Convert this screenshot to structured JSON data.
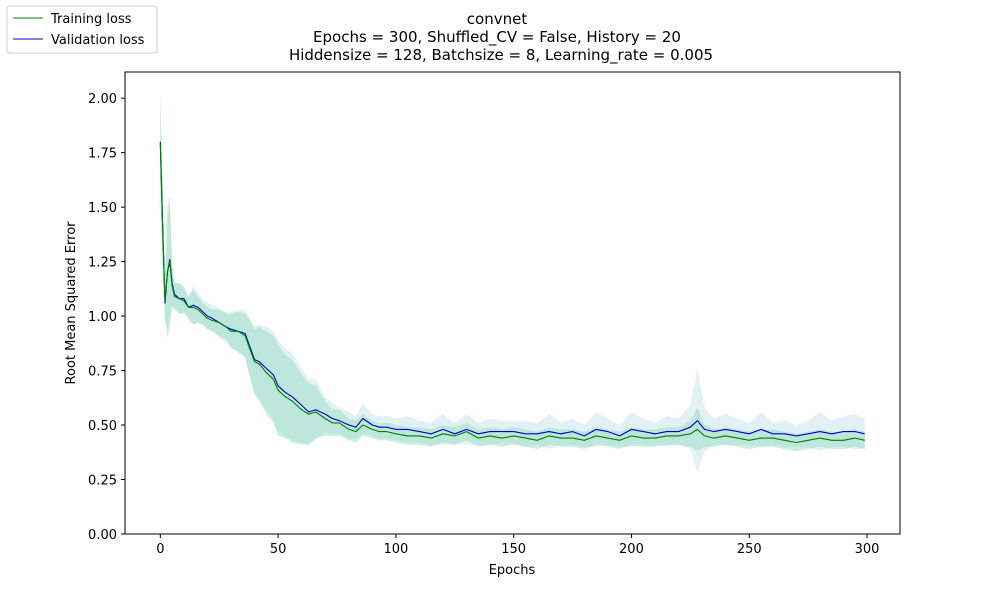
{
  "chart_data": {
    "type": "line",
    "title": "convnet",
    "subtitle_lines": [
      "Epochs = 300, Shuffled_CV = False, History = 20",
      "Hiddensize = 128, Batchsize = 8, Learning_rate = 0.005"
    ],
    "xlabel": "Epochs",
    "ylabel": "Root Mean Squared Error",
    "xlim": [
      -15,
      314
    ],
    "ylim": [
      0,
      2.12
    ],
    "xticks": [
      0,
      50,
      100,
      150,
      200,
      250,
      300
    ],
    "yticks": [
      0.0,
      0.25,
      0.5,
      0.75,
      1.0,
      1.25,
      1.5,
      1.75,
      2.0
    ],
    "grid": false,
    "legend_position": "top-left",
    "x": [
      0,
      1,
      2,
      3,
      4,
      5,
      6,
      8,
      10,
      12,
      14,
      16,
      18,
      20,
      22,
      25,
      28,
      30,
      33,
      36,
      38,
      40,
      42,
      45,
      48,
      50,
      53,
      56,
      60,
      63,
      66,
      70,
      73,
      76,
      80,
      83,
      86,
      90,
      93,
      96,
      100,
      105,
      110,
      115,
      120,
      125,
      130,
      135,
      140,
      145,
      150,
      155,
      160,
      165,
      170,
      175,
      180,
      185,
      190,
      195,
      200,
      205,
      210,
      215,
      220,
      225,
      228,
      231,
      235,
      240,
      245,
      250,
      255,
      260,
      265,
      270,
      275,
      280,
      285,
      290,
      295,
      299
    ],
    "series": [
      {
        "name": "Training loss",
        "color": "#008000",
        "band_color": "#8fdcb8",
        "values": [
          1.79,
          1.4,
          1.07,
          1.2,
          1.25,
          1.14,
          1.09,
          1.08,
          1.07,
          1.04,
          1.04,
          1.03,
          1.01,
          0.99,
          0.98,
          0.97,
          0.95,
          0.93,
          0.93,
          0.91,
          0.85,
          0.79,
          0.78,
          0.74,
          0.71,
          0.66,
          0.63,
          0.61,
          0.57,
          0.55,
          0.56,
          0.53,
          0.51,
          0.51,
          0.48,
          0.47,
          0.5,
          0.48,
          0.47,
          0.47,
          0.46,
          0.45,
          0.45,
          0.44,
          0.46,
          0.45,
          0.47,
          0.44,
          0.45,
          0.44,
          0.45,
          0.44,
          0.43,
          0.45,
          0.44,
          0.44,
          0.43,
          0.45,
          0.44,
          0.43,
          0.45,
          0.44,
          0.44,
          0.45,
          0.45,
          0.46,
          0.48,
          0.45,
          0.44,
          0.45,
          0.44,
          0.43,
          0.44,
          0.44,
          0.43,
          0.42,
          0.43,
          0.44,
          0.43,
          0.43,
          0.44,
          0.43
        ],
        "band_halfwidth": [
          0.22,
          0.2,
          0.08,
          0.3,
          0.3,
          0.1,
          0.06,
          0.07,
          0.06,
          0.05,
          0.08,
          0.06,
          0.05,
          0.05,
          0.05,
          0.06,
          0.06,
          0.08,
          0.09,
          0.1,
          0.13,
          0.15,
          0.17,
          0.19,
          0.2,
          0.21,
          0.19,
          0.19,
          0.16,
          0.14,
          0.12,
          0.08,
          0.06,
          0.06,
          0.05,
          0.05,
          0.05,
          0.04,
          0.04,
          0.04,
          0.04,
          0.04,
          0.04,
          0.04,
          0.04,
          0.04,
          0.04,
          0.04,
          0.04,
          0.04,
          0.04,
          0.04,
          0.04,
          0.04,
          0.04,
          0.04,
          0.04,
          0.04,
          0.04,
          0.04,
          0.04,
          0.04,
          0.04,
          0.04,
          0.04,
          0.06,
          0.1,
          0.05,
          0.04,
          0.04,
          0.04,
          0.04,
          0.04,
          0.04,
          0.04,
          0.04,
          0.04,
          0.04,
          0.04,
          0.04,
          0.04,
          0.04
        ]
      },
      {
        "name": "Validation loss",
        "color": "#0000cc",
        "band_color": "#add8e6",
        "values": [
          1.8,
          1.4,
          1.06,
          1.2,
          1.26,
          1.15,
          1.1,
          1.08,
          1.08,
          1.04,
          1.05,
          1.04,
          1.02,
          1.0,
          0.99,
          0.97,
          0.95,
          0.94,
          0.93,
          0.92,
          0.86,
          0.8,
          0.79,
          0.76,
          0.73,
          0.68,
          0.65,
          0.63,
          0.59,
          0.56,
          0.57,
          0.55,
          0.53,
          0.52,
          0.5,
          0.49,
          0.53,
          0.5,
          0.49,
          0.49,
          0.48,
          0.48,
          0.47,
          0.46,
          0.48,
          0.46,
          0.48,
          0.46,
          0.47,
          0.47,
          0.47,
          0.46,
          0.46,
          0.47,
          0.46,
          0.47,
          0.45,
          0.48,
          0.47,
          0.45,
          0.48,
          0.47,
          0.46,
          0.47,
          0.47,
          0.49,
          0.52,
          0.48,
          0.47,
          0.48,
          0.47,
          0.46,
          0.48,
          0.46,
          0.46,
          0.45,
          0.46,
          0.47,
          0.46,
          0.47,
          0.47,
          0.46
        ],
        "band_halfwidth": [
          0.22,
          0.2,
          0.08,
          0.25,
          0.25,
          0.1,
          0.06,
          0.07,
          0.06,
          0.05,
          0.09,
          0.07,
          0.06,
          0.06,
          0.06,
          0.07,
          0.07,
          0.08,
          0.1,
          0.11,
          0.13,
          0.15,
          0.17,
          0.19,
          0.2,
          0.21,
          0.2,
          0.2,
          0.17,
          0.15,
          0.14,
          0.08,
          0.07,
          0.06,
          0.06,
          0.05,
          0.07,
          0.05,
          0.05,
          0.05,
          0.05,
          0.06,
          0.05,
          0.05,
          0.07,
          0.05,
          0.07,
          0.05,
          0.06,
          0.05,
          0.05,
          0.06,
          0.05,
          0.08,
          0.05,
          0.06,
          0.05,
          0.08,
          0.06,
          0.05,
          0.08,
          0.06,
          0.05,
          0.07,
          0.06,
          0.1,
          0.24,
          0.1,
          0.06,
          0.07,
          0.06,
          0.05,
          0.08,
          0.05,
          0.06,
          0.05,
          0.06,
          0.09,
          0.06,
          0.07,
          0.08,
          0.07
        ]
      }
    ]
  }
}
